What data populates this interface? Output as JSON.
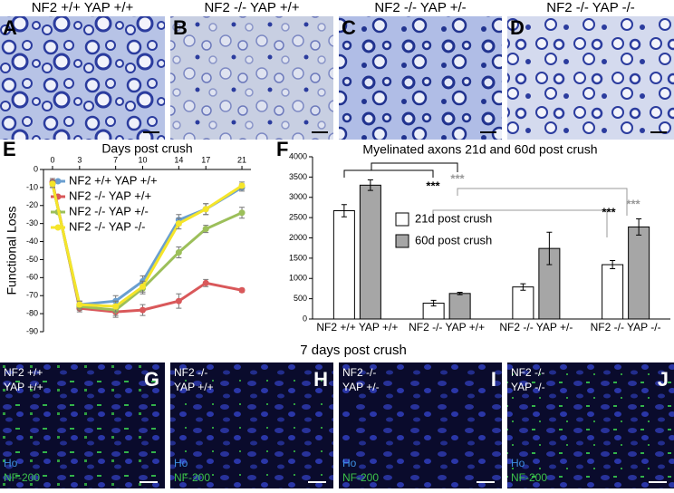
{
  "panels_top": [
    {
      "letter": "A",
      "title": "NF2 +/+ YAP +/+"
    },
    {
      "letter": "B",
      "title": "NF2 -/- YAP +/+"
    },
    {
      "letter": "C",
      "title": "NF2 -/- YAP +/-"
    },
    {
      "letter": "D",
      "title": "NF2 -/- YAP -/-"
    }
  ],
  "chart_data": [
    {
      "type": "line",
      "letter": "E",
      "x_label": "Days post crush",
      "y_label": "Functional Loss",
      "x": [
        0,
        3,
        7,
        10,
        14,
        17,
        21
      ],
      "xlim": [
        -1,
        22
      ],
      "xticks": [
        0,
        3,
        7,
        10,
        14,
        17,
        21
      ],
      "ylim": [
        -90,
        0
      ],
      "yticks": [
        0,
        -10,
        -20,
        -30,
        -40,
        -50,
        -60,
        -70,
        -80,
        -90
      ],
      "legend": "upper-left",
      "series": [
        {
          "name": "NF2 +/+ YAP +/+",
          "color": "#6a9fd0",
          "values": [
            -8,
            -75,
            -73,
            -62,
            -28,
            -22,
            -10
          ],
          "errors": [
            2,
            2,
            3,
            3,
            3,
            3,
            2
          ]
        },
        {
          "name": "NF2 -/- YAP +/+",
          "color": "#d9585a",
          "values": [
            -7,
            -77,
            -79,
            -78,
            -73,
            -63,
            -67
          ],
          "errors": [
            2,
            2,
            3,
            3,
            4,
            2,
            1
          ]
        },
        {
          "name": "NF2 -/- YAP +/-",
          "color": "#9cbf5a",
          "values": [
            -8,
            -76,
            -78,
            -66,
            -46,
            -33,
            -24
          ],
          "errors": [
            2,
            2,
            3,
            3,
            3,
            2,
            3
          ]
        },
        {
          "name": "NF2 -/- YAP -/-",
          "color": "#f5e52a",
          "values": [
            -8,
            -75,
            -76,
            -65,
            -30,
            -22,
            -9
          ],
          "errors": [
            2,
            2,
            3,
            3,
            3,
            3,
            2
          ]
        }
      ]
    },
    {
      "type": "bar",
      "letter": "F",
      "title": "Myelinated axons 21d and 60d post crush",
      "categories": [
        "NF2 +/+ YAP +/+",
        "NF2 -/- YAP +/+",
        "NF2 -/- YAP +/-",
        "NF2 -/- YAP -/-"
      ],
      "ylim": [
        0,
        4000
      ],
      "yticks": [
        0,
        500,
        1000,
        1500,
        2000,
        2500,
        3000,
        3500,
        4000
      ],
      "legend": "center",
      "series": [
        {
          "name": "21d post crush",
          "color": "#ffffff",
          "values": [
            2670,
            390,
            790,
            1340
          ],
          "errors": [
            150,
            70,
            80,
            100
          ]
        },
        {
          "name": "60d post crush",
          "color": "#a6a6a6",
          "values": [
            3300,
            630,
            1740,
            2270
          ],
          "errors": [
            130,
            30,
            400,
            200
          ]
        }
      ],
      "annotations": [
        {
          "text": "***",
          "color": "#000000"
        },
        {
          "text": "***",
          "color": "#999999"
        },
        {
          "text": "***",
          "color": "#000000"
        },
        {
          "text": "***",
          "color": "#999999"
        }
      ]
    }
  ],
  "section_title": "7 days post crush",
  "panels_bottom": [
    {
      "letter": "G",
      "line1": "NF2 +/+",
      "line2": "YAP +/+",
      "stain1": "Ho",
      "stain2": "NF-200"
    },
    {
      "letter": "H",
      "line1": "NF2 -/-",
      "line2": "YAP +/+",
      "stain1": "Ho",
      "stain2": "NF-200"
    },
    {
      "letter": "I",
      "line1": "NF2 -/-",
      "line2": "YAP +/-",
      "stain1": "Ho",
      "stain2": "NF-200"
    },
    {
      "letter": "J",
      "line1": "NF2 -/-",
      "line2": "YAP -/-",
      "stain1": "Ho",
      "stain2": "NF-200"
    }
  ]
}
